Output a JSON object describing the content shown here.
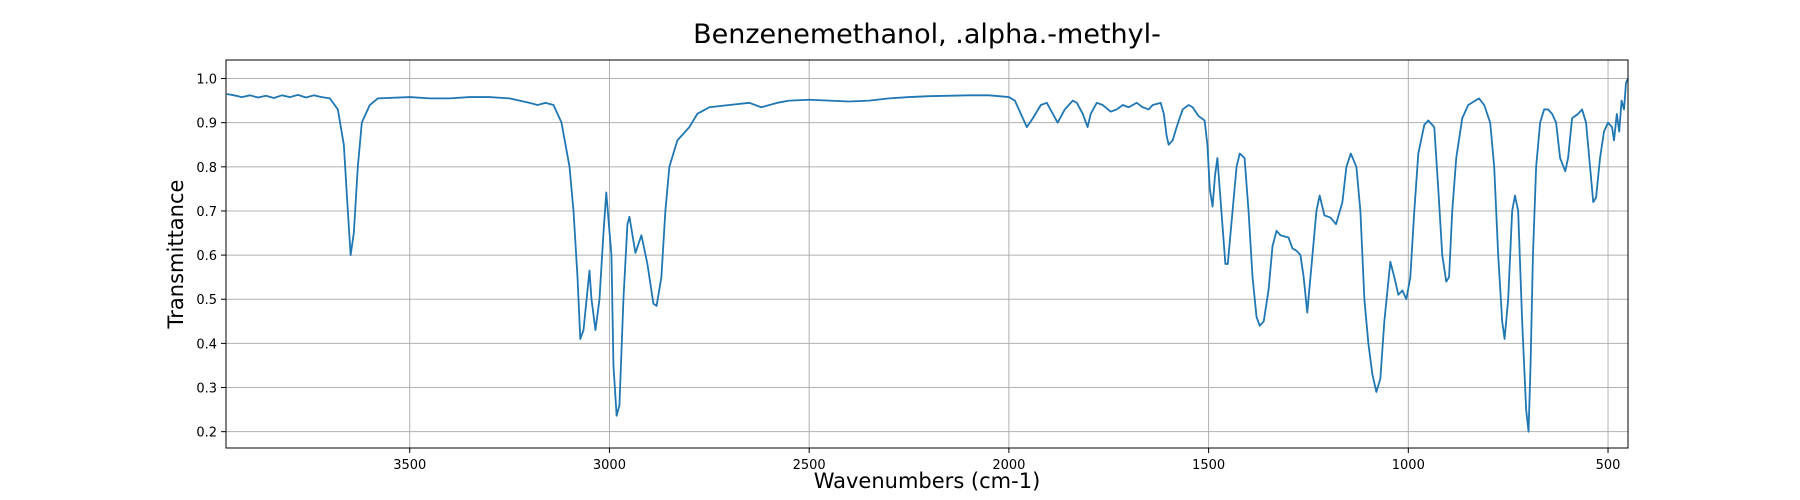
{
  "chart_data": {
    "type": "line",
    "title": "Benzenemethanol, .alpha.-methyl-",
    "x_label": "Wavenumbers (cm-1)",
    "y_label": "Transmittance",
    "x": [
      3958,
      3940,
      3920,
      3900,
      3880,
      3860,
      3840,
      3820,
      3800,
      3780,
      3760,
      3740,
      3720,
      3700,
      3680,
      3665,
      3655,
      3648,
      3640,
      3630,
      3620,
      3600,
      3580,
      3500,
      3450,
      3400,
      3350,
      3300,
      3250,
      3200,
      3180,
      3160,
      3140,
      3120,
      3100,
      3090,
      3080,
      3073,
      3065,
      3055,
      3050,
      3045,
      3035,
      3025,
      3015,
      3008,
      2995,
      2990,
      2982,
      2975,
      2965,
      2955,
      2950,
      2935,
      2920,
      2905,
      2890,
      2882,
      2870,
      2860,
      2850,
      2830,
      2800,
      2780,
      2750,
      2700,
      2650,
      2620,
      2580,
      2550,
      2500,
      2450,
      2400,
      2350,
      2300,
      2250,
      2200,
      2100,
      2050,
      2000,
      1985,
      1970,
      1955,
      1940,
      1920,
      1905,
      1890,
      1878,
      1860,
      1840,
      1830,
      1815,
      1803,
      1795,
      1780,
      1765,
      1745,
      1730,
      1715,
      1700,
      1680,
      1665,
      1650,
      1640,
      1620,
      1612,
      1605,
      1600,
      1590,
      1580,
      1565,
      1550,
      1540,
      1525,
      1510,
      1503,
      1497,
      1490,
      1484,
      1478,
      1468,
      1458,
      1452,
      1440,
      1430,
      1422,
      1410,
      1400,
      1390,
      1380,
      1372,
      1362,
      1350,
      1340,
      1330,
      1320,
      1300,
      1290,
      1280,
      1270,
      1262,
      1253,
      1240,
      1230,
      1222,
      1210,
      1195,
      1181,
      1165,
      1155,
      1144,
      1130,
      1120,
      1110,
      1100,
      1090,
      1080,
      1070,
      1060,
      1045,
      1035,
      1025,
      1015,
      1005,
      995,
      985,
      975,
      960,
      950,
      935,
      925,
      915,
      905,
      898,
      890,
      880,
      865,
      850,
      823,
      810,
      795,
      785,
      775,
      765,
      759,
      750,
      740,
      733,
      725,
      715,
      705,
      699,
      694,
      688,
      680,
      670,
      660,
      650,
      640,
      630,
      620,
      607,
      600,
      590,
      575,
      565,
      555,
      545,
      537,
      530,
      520,
      510,
      500,
      490,
      485,
      478,
      472,
      466,
      460,
      455,
      450
    ],
    "series": [
      {
        "name": "Benzenemethanol, .alpha.-methyl-",
        "color": "#1f77b4",
        "values": [
          0.965,
          0.962,
          0.958,
          0.962,
          0.957,
          0.961,
          0.956,
          0.962,
          0.958,
          0.963,
          0.957,
          0.962,
          0.958,
          0.955,
          0.93,
          0.85,
          0.7,
          0.6,
          0.65,
          0.8,
          0.9,
          0.94,
          0.955,
          0.958,
          0.955,
          0.955,
          0.958,
          0.958,
          0.955,
          0.945,
          0.94,
          0.945,
          0.94,
          0.9,
          0.8,
          0.7,
          0.55,
          0.41,
          0.43,
          0.52,
          0.565,
          0.5,
          0.43,
          0.5,
          0.65,
          0.742,
          0.6,
          0.35,
          0.236,
          0.26,
          0.5,
          0.67,
          0.687,
          0.605,
          0.645,
          0.58,
          0.49,
          0.485,
          0.55,
          0.7,
          0.8,
          0.86,
          0.89,
          0.92,
          0.935,
          0.94,
          0.945,
          0.935,
          0.945,
          0.95,
          0.952,
          0.95,
          0.948,
          0.95,
          0.955,
          0.958,
          0.96,
          0.962,
          0.962,
          0.958,
          0.95,
          0.92,
          0.89,
          0.91,
          0.94,
          0.945,
          0.92,
          0.9,
          0.93,
          0.95,
          0.945,
          0.92,
          0.89,
          0.92,
          0.945,
          0.94,
          0.925,
          0.93,
          0.94,
          0.935,
          0.945,
          0.935,
          0.93,
          0.94,
          0.945,
          0.92,
          0.87,
          0.85,
          0.86,
          0.89,
          0.93,
          0.94,
          0.935,
          0.915,
          0.905,
          0.85,
          0.75,
          0.71,
          0.78,
          0.82,
          0.7,
          0.58,
          0.58,
          0.7,
          0.8,
          0.83,
          0.82,
          0.7,
          0.55,
          0.46,
          0.44,
          0.45,
          0.52,
          0.62,
          0.655,
          0.645,
          0.64,
          0.615,
          0.61,
          0.6,
          0.55,
          0.47,
          0.6,
          0.7,
          0.735,
          0.69,
          0.685,
          0.67,
          0.72,
          0.8,
          0.83,
          0.8,
          0.7,
          0.5,
          0.4,
          0.33,
          0.29,
          0.32,
          0.45,
          0.585,
          0.55,
          0.51,
          0.52,
          0.5,
          0.55,
          0.7,
          0.83,
          0.895,
          0.905,
          0.89,
          0.75,
          0.6,
          0.54,
          0.55,
          0.7,
          0.82,
          0.91,
          0.94,
          0.955,
          0.94,
          0.9,
          0.8,
          0.6,
          0.45,
          0.41,
          0.5,
          0.7,
          0.735,
          0.7,
          0.45,
          0.25,
          0.2,
          0.35,
          0.6,
          0.8,
          0.9,
          0.93,
          0.93,
          0.92,
          0.9,
          0.82,
          0.79,
          0.82,
          0.91,
          0.92,
          0.93,
          0.9,
          0.8,
          0.72,
          0.73,
          0.82,
          0.88,
          0.9,
          0.89,
          0.86,
          0.92,
          0.88,
          0.95,
          0.93,
          0.99,
          1.0
        ]
      }
    ],
    "xlim": [
      3960,
      450
    ],
    "ylim": [
      0.163,
      1.042
    ],
    "xticks": [
      3500,
      3000,
      2500,
      2000,
      1500,
      1000,
      500
    ],
    "yticks": [
      0.2,
      0.3,
      0.4,
      0.5,
      0.6,
      0.7,
      0.8,
      0.9,
      {
        "value": 1.0,
        "label": "1.0"
      }
    ],
    "grid": true
  }
}
